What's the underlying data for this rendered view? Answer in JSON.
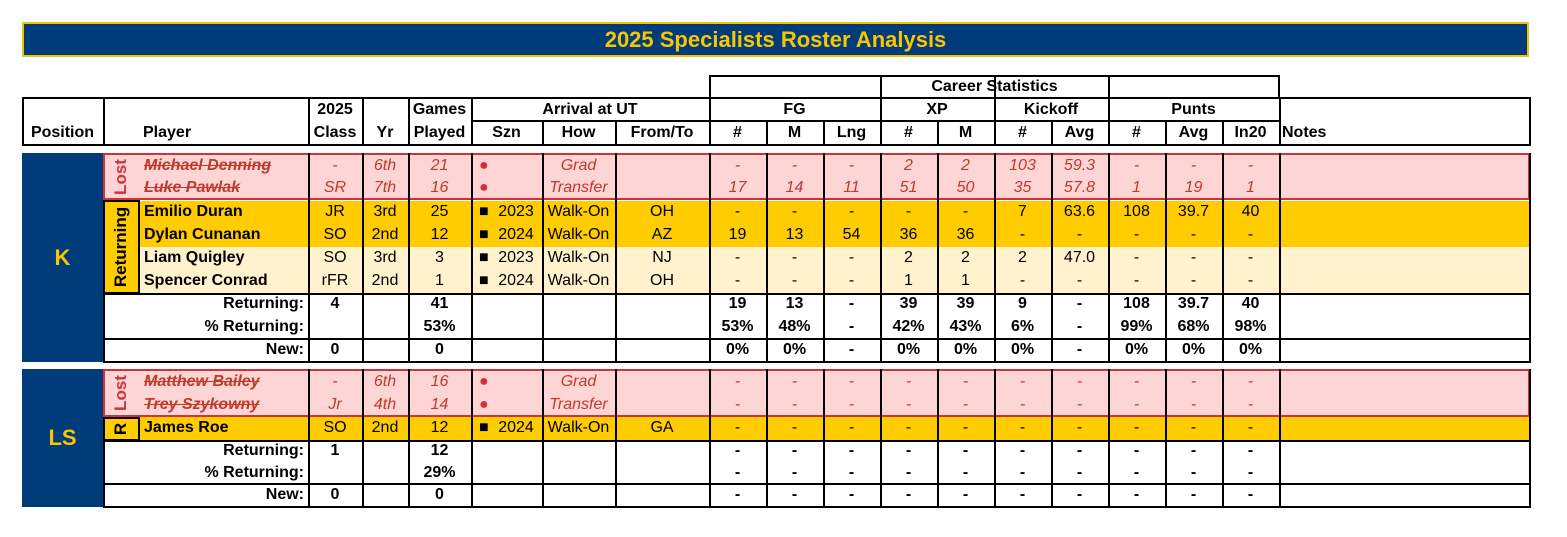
{
  "title": "2025 Specialists Roster Analysis",
  "header": {
    "career_statistics": "Career Statistics",
    "position": "Position",
    "player": "Player",
    "class_top": "2025",
    "class_bottom": "Class",
    "yr": "Yr",
    "games_top": "Games",
    "games_bottom": "Played",
    "arrival": "Arrival at UT",
    "szn": "Szn",
    "how": "How",
    "from_to": "From/To",
    "fg": "FG",
    "xp": "XP",
    "kickoff": "Kickoff",
    "punts": "Punts",
    "notes": "Notes",
    "stat_cols": [
      "#",
      "M",
      "Lng",
      "#",
      "M",
      "#",
      "Avg",
      "#",
      "Avg",
      "In20"
    ]
  },
  "groups": [
    {
      "position": "K",
      "lost_label": "Lost",
      "returning_label": "Returning",
      "lost": [
        {
          "name": "Michael Denning",
          "class": "-",
          "yr": "6th",
          "games": "21",
          "bullet": "●",
          "szn": "",
          "how": "Grad",
          "from_to": "",
          "stats": [
            "-",
            "-",
            "-",
            "2",
            "2",
            "103",
            "59.3",
            "-",
            "-",
            "-"
          ]
        },
        {
          "name": "Luke Pawlak",
          "class": "SR",
          "yr": "7th",
          "games": "16",
          "bullet": "●",
          "szn": "",
          "how": "Transfer",
          "from_to": "",
          "stats": [
            "17",
            "14",
            "11",
            "51",
            "50",
            "35",
            "57.8",
            "1",
            "19",
            "1"
          ]
        }
      ],
      "returning": [
        {
          "name": "Emilio Duran",
          "class": "JR",
          "yr": "3rd",
          "games": "25",
          "bullet": "■",
          "szn": "2023",
          "how": "Walk-On",
          "from_to": "OH",
          "stats": [
            "-",
            "-",
            "-",
            "-",
            "-",
            "7",
            "63.6",
            "108",
            "39.7",
            "40"
          ]
        },
        {
          "name": "Dylan Cunanan",
          "class": "SO",
          "yr": "2nd",
          "games": "12",
          "bullet": "■",
          "szn": "2024",
          "how": "Walk-On",
          "from_to": "AZ",
          "stats": [
            "19",
            "13",
            "54",
            "36",
            "36",
            "-",
            "-",
            "-",
            "-",
            "-"
          ]
        },
        {
          "name": "Liam Quigley",
          "class": "SO",
          "yr": "3rd",
          "games": "3",
          "bullet": "■",
          "szn": "2023",
          "how": "Walk-On",
          "from_to": "NJ",
          "stats": [
            "-",
            "-",
            "-",
            "2",
            "2",
            "2",
            "47.0",
            "-",
            "-",
            "-"
          ]
        },
        {
          "name": "Spencer Conrad",
          "class": "rFR",
          "yr": "2nd",
          "games": "1",
          "bullet": "■",
          "szn": "2024",
          "how": "Walk-On",
          "from_to": "OH",
          "stats": [
            "-",
            "-",
            "-",
            "1",
            "1",
            "-",
            "-",
            "-",
            "-",
            "-"
          ]
        }
      ],
      "summary": [
        {
          "label": "Returning:",
          "class": "4",
          "games": "41",
          "stats": [
            "19",
            "13",
            "-",
            "39",
            "39",
            "9",
            "-",
            "108",
            "39.7",
            "40"
          ]
        },
        {
          "label": "% Returning:",
          "class": "",
          "games": "53%",
          "stats": [
            "53%",
            "48%",
            "-",
            "42%",
            "43%",
            "6%",
            "-",
            "99%",
            "68%",
            "98%"
          ]
        },
        {
          "label": "New:",
          "class": "0",
          "games": "0",
          "stats": [
            "0%",
            "0%",
            "-",
            "0%",
            "0%",
            "0%",
            "-",
            "0%",
            "0%",
            "0%"
          ]
        }
      ]
    },
    {
      "position": "LS",
      "lost_label": "Lost",
      "returning_label": "R",
      "lost": [
        {
          "name": "Matthew Bailey",
          "class": "-",
          "yr": "6th",
          "games": "16",
          "bullet": "●",
          "szn": "",
          "how": "Grad",
          "from_to": "",
          "stats": [
            "-",
            "-",
            "-",
            "-",
            "-",
            "-",
            "-",
            "-",
            "-",
            "-"
          ]
        },
        {
          "name": "Trey Szykowny",
          "class": "Jr",
          "yr": "4th",
          "games": "14",
          "bullet": "●",
          "szn": "",
          "how": "Transfer",
          "from_to": "",
          "stats": [
            "-",
            "-",
            "-",
            "-",
            "-",
            "-",
            "-",
            "-",
            "-",
            "-"
          ]
        }
      ],
      "returning": [
        {
          "name": "James Roe",
          "class": "SO",
          "yr": "2nd",
          "games": "12",
          "bullet": "■",
          "szn": "2024",
          "how": "Walk-On",
          "from_to": "GA",
          "stats": [
            "-",
            "-",
            "-",
            "-",
            "-",
            "-",
            "-",
            "-",
            "-",
            "-"
          ]
        }
      ],
      "summary": [
        {
          "label": "Returning:",
          "class": "1",
          "games": "12",
          "stats": [
            "-",
            "-",
            "-",
            "-",
            "-",
            "-",
            "-",
            "-",
            "-",
            "-"
          ]
        },
        {
          "label": "% Returning:",
          "class": "",
          "games": "29%",
          "stats": [
            "-",
            "-",
            "-",
            "-",
            "-",
            "-",
            "-",
            "-",
            "-",
            "-"
          ]
        },
        {
          "label": "New:",
          "class": "0",
          "games": "0",
          "stats": [
            "-",
            "-",
            "-",
            "-",
            "-",
            "-",
            "-",
            "-",
            "-",
            "-"
          ]
        }
      ]
    }
  ],
  "colors": {
    "navy": "#003b7a",
    "gold": "#f7c600",
    "lost_fill": "#fdd5d5",
    "lost_text": "#c0392b",
    "row_gold": "#ffcc00",
    "row_cream": "#fff2cc"
  }
}
